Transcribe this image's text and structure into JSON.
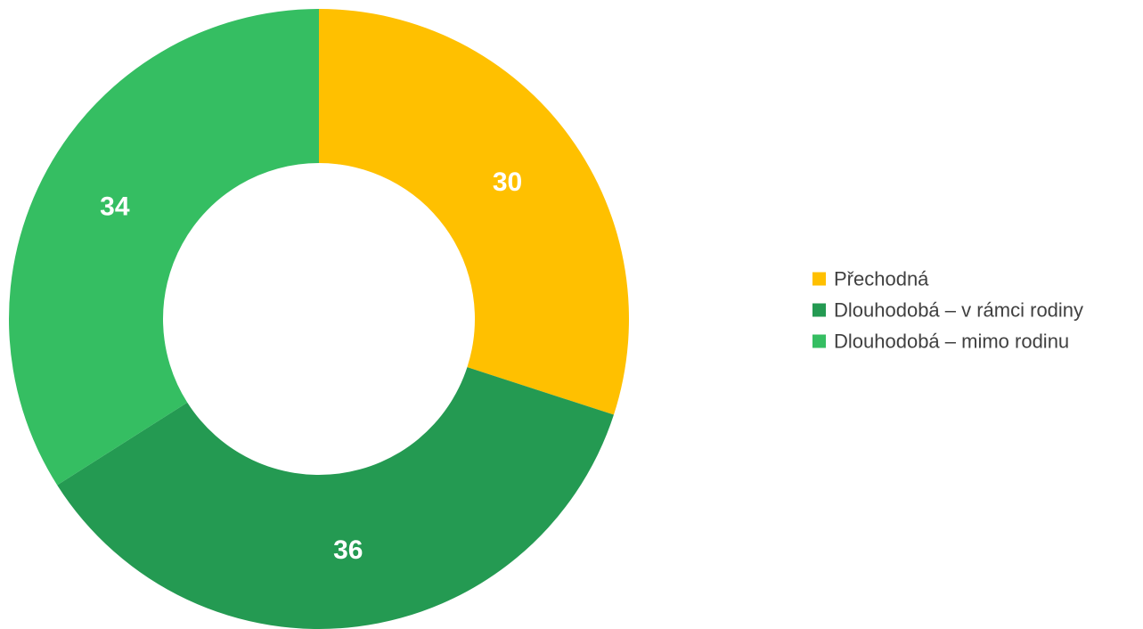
{
  "chart_data": {
    "type": "pie",
    "variant": "donut",
    "categories": [
      "Přechodná",
      "Dlouhodobá – v rámci rodiny",
      "Dlouhodobá – mimo rodinu"
    ],
    "values": [
      30,
      36,
      34
    ],
    "data_labels": [
      "30",
      "36",
      "34"
    ],
    "colors": [
      "#FFC000",
      "#249A52",
      "#35BE62"
    ],
    "legend_position": "right"
  }
}
